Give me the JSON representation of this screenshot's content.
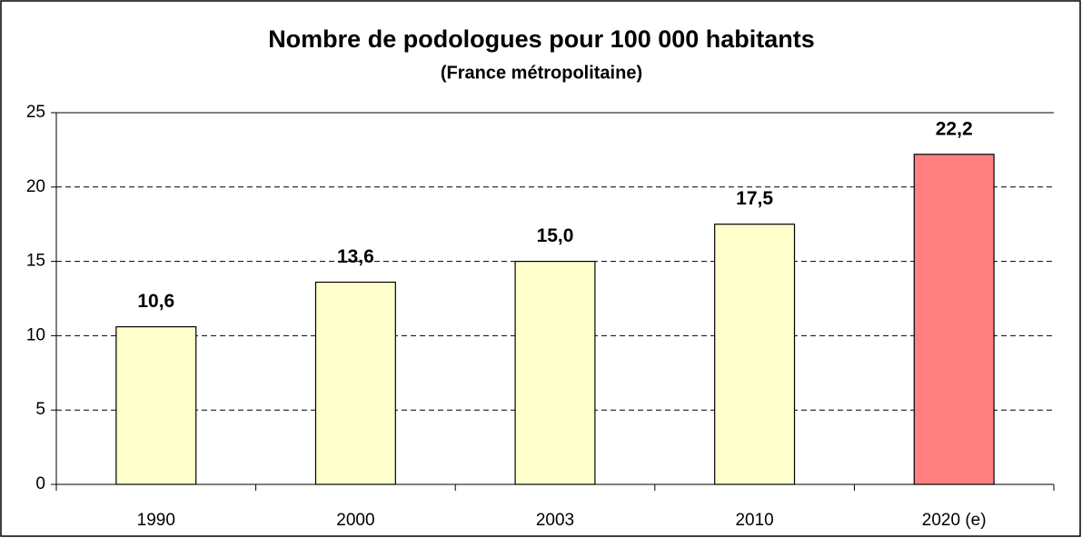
{
  "chart_data": {
    "type": "bar",
    "title": "Nombre de podologues pour 100 000 habitants",
    "subtitle": "(France métropolitaine)",
    "categories": [
      "1990",
      "2000",
      "2003",
      "2010",
      "2020 (e)"
    ],
    "values": [
      10.6,
      13.6,
      15.0,
      17.5,
      22.2
    ],
    "value_labels": [
      "10,6",
      "13,6",
      "15,0",
      "17,5",
      "22,2"
    ],
    "colors": [
      "#ffffcc",
      "#ffffcc",
      "#ffffcc",
      "#ffffcc",
      "#ff8080"
    ],
    "ylim": [
      0,
      25
    ],
    "yticks": [
      0,
      5,
      10,
      15,
      20,
      25
    ],
    "grid": true
  }
}
